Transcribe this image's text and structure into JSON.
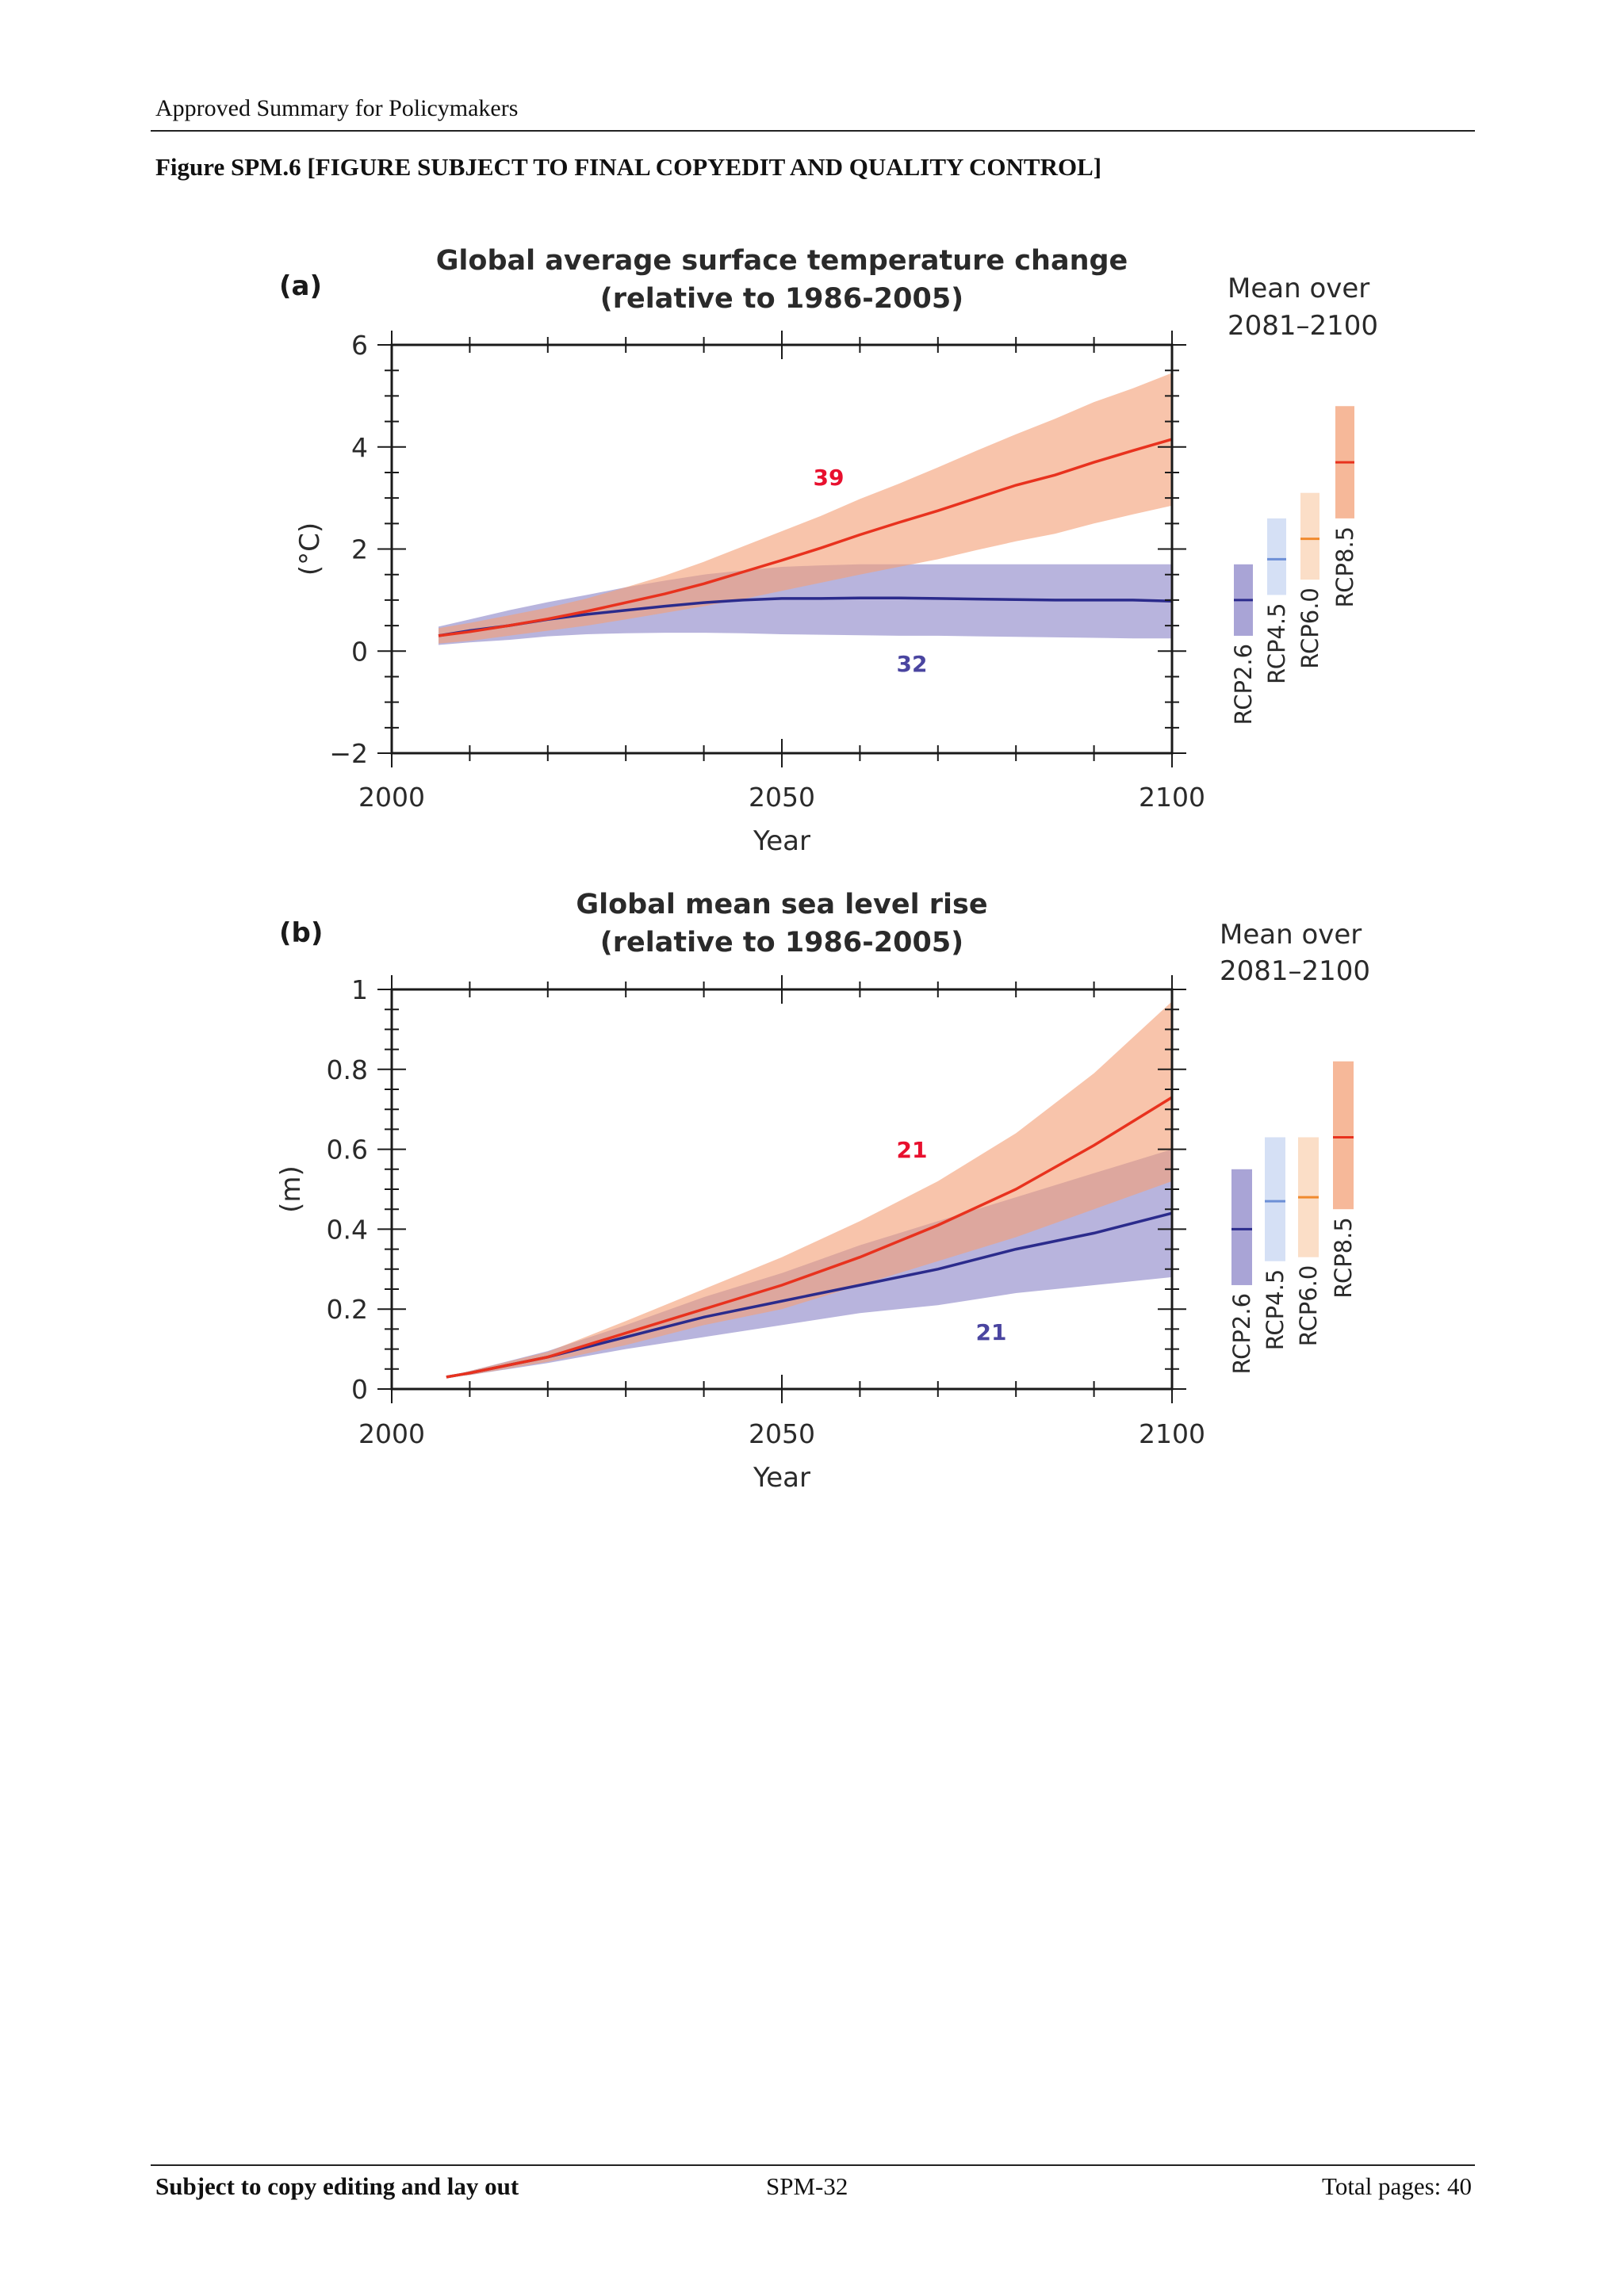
{
  "header": {
    "text": "Approved Summary for Policymakers"
  },
  "figure": {
    "caption": "Figure SPM.6 [FIGURE SUBJECT TO FINAL COPYEDIT AND QUALITY CONTROL]"
  },
  "footer": {
    "left": "Subject to copy editing and lay out",
    "center": "SPM-32",
    "right": "Total pages: 40"
  },
  "colors": {
    "rcp26_line": "#2b2b8c",
    "rcp26_band": "#8c86c8",
    "rcp85_line": "#e8321e",
    "rcp85_band": "#f3a077",
    "rcp45_line": "#6d8fd6",
    "rcp45_band": "#c7d6f2",
    "rcp60_line": "#f08a2e",
    "rcp60_band": "#f9d3b4",
    "model_count_red": "#e8102e",
    "model_count_blue": "#4a45a0"
  },
  "chart_data": [
    {
      "type": "line",
      "panel_label": "(a)",
      "title": "Global average surface temperature change",
      "subtitle": "(relative to 1986-2005)",
      "xlabel": "Year",
      "ylabel": "(°C)",
      "xlim": [
        2000,
        2100
      ],
      "ylim": [
        -2,
        6
      ],
      "xticks": [
        2000,
        2050,
        2100
      ],
      "yticks": [
        -2,
        0,
        2,
        4,
        6
      ],
      "tick_labels_x": [
        "2000",
        "2050",
        "2100"
      ],
      "tick_labels_y": [
        "−2",
        "0",
        "2",
        "4",
        "6"
      ],
      "series": [
        {
          "name": "RCP2.6",
          "model_count": "32",
          "x": [
            2006,
            2010,
            2015,
            2020,
            2025,
            2030,
            2035,
            2040,
            2045,
            2050,
            2055,
            2060,
            2065,
            2070,
            2075,
            2080,
            2085,
            2090,
            2095,
            2100
          ],
          "y": [
            0.3,
            0.4,
            0.5,
            0.62,
            0.72,
            0.8,
            0.88,
            0.95,
            1.0,
            1.03,
            1.03,
            1.04,
            1.04,
            1.03,
            1.02,
            1.01,
            1.0,
            1.0,
            1.0,
            0.98
          ],
          "lower": [
            0.12,
            0.17,
            0.22,
            0.29,
            0.33,
            0.35,
            0.36,
            0.36,
            0.35,
            0.33,
            0.32,
            0.31,
            0.3,
            0.3,
            0.29,
            0.28,
            0.27,
            0.26,
            0.25,
            0.25
          ],
          "upper": [
            0.48,
            0.62,
            0.8,
            0.96,
            1.1,
            1.25,
            1.38,
            1.5,
            1.58,
            1.65,
            1.68,
            1.7,
            1.7,
            1.7,
            1.7,
            1.7,
            1.7,
            1.7,
            1.7,
            1.7
          ]
        },
        {
          "name": "RCP8.5",
          "model_count": "39",
          "x": [
            2006,
            2010,
            2015,
            2020,
            2025,
            2030,
            2035,
            2040,
            2045,
            2050,
            2055,
            2060,
            2065,
            2070,
            2075,
            2080,
            2085,
            2090,
            2095,
            2100
          ],
          "y": [
            0.3,
            0.38,
            0.5,
            0.63,
            0.78,
            0.95,
            1.12,
            1.32,
            1.55,
            1.78,
            2.02,
            2.28,
            2.52,
            2.75,
            3.0,
            3.25,
            3.45,
            3.7,
            3.93,
            4.15
          ],
          "lower": [
            0.15,
            0.2,
            0.3,
            0.4,
            0.5,
            0.62,
            0.75,
            0.88,
            1.02,
            1.18,
            1.34,
            1.5,
            1.65,
            1.8,
            1.98,
            2.15,
            2.3,
            2.5,
            2.68,
            2.85
          ],
          "upper": [
            0.45,
            0.55,
            0.7,
            0.85,
            1.03,
            1.25,
            1.48,
            1.75,
            2.05,
            2.35,
            2.65,
            2.98,
            3.28,
            3.6,
            3.93,
            4.25,
            4.55,
            4.88,
            5.15,
            5.45
          ]
        }
      ],
      "mean_bars_title": [
        "Mean over",
        "2081–2100"
      ],
      "mean_bars": [
        {
          "name": "RCP2.6",
          "mean": 1.0,
          "low": 0.3,
          "high": 1.7
        },
        {
          "name": "RCP4.5",
          "mean": 1.8,
          "low": 1.1,
          "high": 2.6
        },
        {
          "name": "RCP6.0",
          "mean": 2.2,
          "low": 1.4,
          "high": 3.1
        },
        {
          "name": "RCP8.5",
          "mean": 3.7,
          "low": 2.6,
          "high": 4.8
        }
      ]
    },
    {
      "type": "line",
      "panel_label": "(b)",
      "title": "Global mean sea level rise",
      "subtitle": "(relative to 1986-2005)",
      "xlabel": "Year",
      "ylabel": "(m)",
      "xlim": [
        2000,
        2100
      ],
      "ylim": [
        0,
        1
      ],
      "xticks": [
        2000,
        2050,
        2100
      ],
      "yticks": [
        0,
        0.2,
        0.4,
        0.6,
        0.8,
        1
      ],
      "tick_labels_x": [
        "2000",
        "2050",
        "2100"
      ],
      "tick_labels_y": [
        "0",
        "0.2",
        "0.4",
        "0.6",
        "0.8",
        "1"
      ],
      "series": [
        {
          "name": "RCP2.6",
          "model_count": "21",
          "x": [
            2007,
            2010,
            2020,
            2030,
            2040,
            2050,
            2060,
            2070,
            2080,
            2090,
            2100
          ],
          "y": [
            0.03,
            0.04,
            0.08,
            0.13,
            0.18,
            0.22,
            0.26,
            0.3,
            0.35,
            0.39,
            0.44
          ],
          "lower": [
            0.03,
            0.035,
            0.065,
            0.1,
            0.13,
            0.16,
            0.19,
            0.21,
            0.24,
            0.26,
            0.28
          ],
          "upper": [
            0.03,
            0.045,
            0.095,
            0.16,
            0.23,
            0.29,
            0.36,
            0.42,
            0.48,
            0.54,
            0.6
          ]
        },
        {
          "name": "RCP8.5",
          "model_count": "21",
          "x": [
            2007,
            2010,
            2020,
            2030,
            2040,
            2050,
            2060,
            2070,
            2080,
            2090,
            2100
          ],
          "y": [
            0.03,
            0.04,
            0.08,
            0.14,
            0.2,
            0.26,
            0.33,
            0.41,
            0.5,
            0.61,
            0.73
          ],
          "lower": [
            0.03,
            0.035,
            0.068,
            0.11,
            0.16,
            0.2,
            0.26,
            0.32,
            0.38,
            0.45,
            0.52
          ],
          "upper": [
            0.03,
            0.045,
            0.093,
            0.17,
            0.25,
            0.33,
            0.42,
            0.52,
            0.64,
            0.79,
            0.97
          ]
        }
      ],
      "mean_bars_title": [
        "Mean over",
        "2081–2100"
      ],
      "mean_bars": [
        {
          "name": "RCP2.6",
          "mean": 0.4,
          "low": 0.26,
          "high": 0.55
        },
        {
          "name": "RCP4.5",
          "mean": 0.47,
          "low": 0.32,
          "high": 0.63
        },
        {
          "name": "RCP6.0",
          "mean": 0.48,
          "low": 0.33,
          "high": 0.63
        },
        {
          "name": "RCP8.5",
          "mean": 0.63,
          "low": 0.45,
          "high": 0.82
        }
      ]
    }
  ]
}
